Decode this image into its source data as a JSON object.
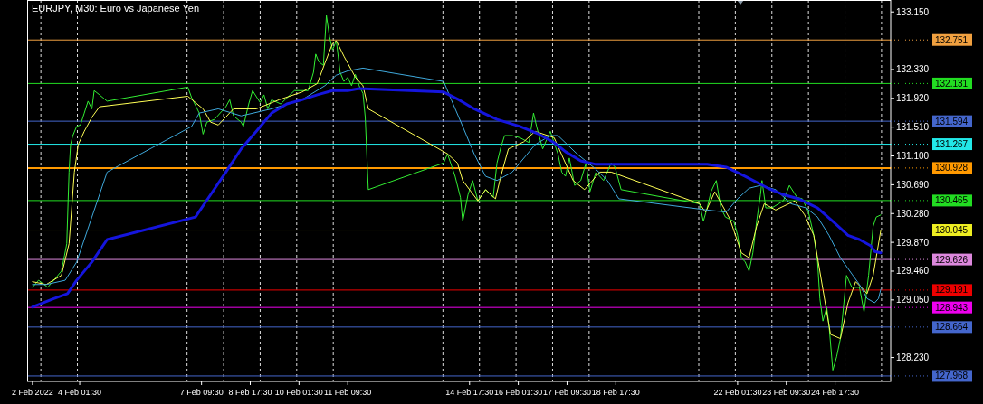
{
  "chart_data": {
    "type": "line",
    "title": "EURJPY, M30:  Euro vs Japanese Yen",
    "grid": "x",
    "line_style": "solid",
    "marker": "none",
    "xlim": [
      "2022-02-02T15:00",
      "2022-02-26T06:00"
    ],
    "ylim": [
      127.89,
      133.32
    ],
    "xticks": [
      {
        "value": "2022-02-02T18:30",
        "label": "2 Feb 2022"
      },
      {
        "value": "2022-02-04T01:30",
        "label": "4 Feb 01:30"
      },
      {
        "value": "2022-02-07T09:30",
        "label": "7 Feb 09:30"
      },
      {
        "value": "2022-02-08T17:30",
        "label": "8 Feb 17:30"
      },
      {
        "value": "2022-02-10T01:30",
        "label": "10 Feb 01:30"
      },
      {
        "value": "2022-02-11T09:30",
        "label": "11 Feb 09:30"
      },
      {
        "value": "2022-02-14T17:30",
        "label": "14 Feb 17:30"
      },
      {
        "value": "2022-02-16T01:30",
        "label": "16 Feb 01:30"
      },
      {
        "value": "2022-02-17T09:30",
        "label": "17 Feb 09:30"
      },
      {
        "value": "2022-02-18T17:30",
        "label": "18 Feb 17:30"
      },
      {
        "value": "2022-02-22T01:30",
        "label": "22 Feb 01:30"
      },
      {
        "value": "2022-02-23T09:30",
        "label": "23 Feb 09:30"
      },
      {
        "value": "2022-02-24T17:30",
        "label": "24 Feb 17:30"
      },
      {
        "value": "2022-02-03",
        "label": null
      },
      {
        "value": "2022-02-04",
        "label": null
      },
      {
        "value": "2022-02-07",
        "label": null
      },
      {
        "value": "2022-02-08",
        "label": null
      },
      {
        "value": "2022-02-09",
        "label": null
      },
      {
        "value": "2022-02-10",
        "label": null
      },
      {
        "value": "2022-02-11",
        "label": null
      },
      {
        "value": "2022-02-14",
        "label": null
      },
      {
        "value": "2022-02-15",
        "label": null
      },
      {
        "value": "2022-02-16",
        "label": null
      },
      {
        "value": "2022-02-17",
        "label": null
      },
      {
        "value": "2022-02-18",
        "label": null
      },
      {
        "value": "2022-02-21",
        "label": null
      },
      {
        "value": "2022-02-22",
        "label": null
      },
      {
        "value": "2022-02-23",
        "label": null
      },
      {
        "value": "2022-02-24",
        "label": null
      },
      {
        "value": "2022-02-25",
        "label": null
      },
      {
        "value": "2022-02-26",
        "label": null
      }
    ],
    "yticks": [
      {
        "value": 133.15,
        "label": "133.150"
      },
      {
        "value": 132.33,
        "label": "132.330"
      },
      {
        "value": 131.92,
        "label": "131.920"
      },
      {
        "value": 131.51,
        "label": "131.510"
      },
      {
        "value": 131.1,
        "label": "131.100"
      },
      {
        "value": 130.69,
        "label": "130.690"
      },
      {
        "value": 130.28,
        "label": "130.280"
      },
      {
        "value": 129.87,
        "label": "129.870"
      },
      {
        "value": 129.46,
        "label": "129.460"
      },
      {
        "value": 129.05,
        "label": "129.050"
      },
      {
        "value": 128.23,
        "label": "128.230"
      }
    ],
    "ref_lines": [
      {
        "axis": "y",
        "value": 132.751,
        "label": "132.751",
        "color": "#f0a040"
      },
      {
        "axis": "y",
        "value": 132.131,
        "label": "132.131",
        "color": "#22dd22"
      },
      {
        "axis": "y",
        "value": 131.594,
        "label": "131.594",
        "color": "#4466cc"
      },
      {
        "axis": "y",
        "value": 131.267,
        "label": "131.267",
        "color": "#22e8e8"
      },
      {
        "axis": "y",
        "value": 130.928,
        "label": "130.928",
        "color": "#ff9900"
      },
      {
        "axis": "y",
        "value": 130.465,
        "label": "130.465",
        "color": "#22dd22"
      },
      {
        "axis": "y",
        "value": 130.045,
        "label": "130.045",
        "color": "#eeee22"
      },
      {
        "axis": "y",
        "value": 129.626,
        "label": "129.626",
        "color": "#dd88dd"
      },
      {
        "axis": "y",
        "value": 129.191,
        "label": "129.191",
        "color": "#ee0000"
      },
      {
        "axis": "y",
        "value": 128.943,
        "label": "128.943",
        "color": "#ee00ee"
      },
      {
        "axis": "y",
        "value": 128.664,
        "label": "128.664",
        "color": "#4466cc"
      },
      {
        "axis": "y",
        "value": 127.968,
        "label": "127.968",
        "color": "#4466cc"
      }
    ],
    "series": [
      {
        "type": "line",
        "color": "#33ee33",
        "x": [
          "2022-02-02T18:30",
          "2022-02-02T22:30",
          "2022-02-03T01:00",
          "2022-02-03T04:30",
          "2022-02-03T08:30",
          "2022-02-03T13:30",
          "2022-02-03T15:30",
          "2022-02-03T17:00",
          "2022-02-03T18:30",
          "2022-02-03T19:30",
          "2022-02-03T21:00",
          "2022-02-03T23:30",
          "2022-02-04T02:00",
          "2022-02-04T04:30",
          "2022-02-04T07:00",
          "2022-02-04T09:30",
          "2022-02-04T11:00",
          "2022-02-04T14:30",
          "2022-02-04T19:30",
          "2022-02-07T00:30",
          "2022-02-07T03:00",
          "2022-02-07T08:00",
          "2022-02-07T10:30",
          "2022-02-07T13:00",
          "2022-02-07T18:00",
          "2022-02-08T01:30",
          "2022-02-08T04:00",
          "2022-02-08T06:30",
          "2022-02-08T11:30",
          "2022-02-08T13:00",
          "2022-02-08T16:30",
          "2022-02-08T19:00",
          "2022-02-09T00:00",
          "2022-02-09T02:30",
          "2022-02-09T05:00",
          "2022-02-09T07:30",
          "2022-02-09T13:30",
          "2022-02-09T22:30",
          "2022-02-10T04:30",
          "2022-02-10T07:30",
          "2022-02-10T11:00",
          "2022-02-10T12:30",
          "2022-02-10T14:30",
          "2022-02-10T17:30",
          "2022-02-10T19:30",
          "2022-02-10T21:30",
          "2022-02-10T23:30",
          "2022-02-11T02:00",
          "2022-02-11T04:30",
          "2022-02-11T07:00",
          "2022-02-11T09:30",
          "2022-02-11T12:00",
          "2022-02-11T14:30",
          "2022-02-11T17:00",
          "2022-02-11T19:30",
          "2022-02-11T21:00",
          "2022-02-11T23:00",
          "2022-02-14T00:30",
          "2022-02-14T03:00",
          "2022-02-14T08:00",
          "2022-02-14T11:30",
          "2022-02-14T13:00",
          "2022-02-14T16:30",
          "2022-02-14T19:30",
          "2022-02-14T23:00",
          "2022-02-15T04:00",
          "2022-02-15T09:00",
          "2022-02-15T11:30",
          "2022-02-15T14:00",
          "2022-02-15T16:30",
          "2022-02-15T21:30",
          "2022-02-16T02:30",
          "2022-02-16T08:30",
          "2022-02-16T11:30",
          "2022-02-16T13:30",
          "2022-02-16T17:30",
          "2022-02-16T22:30",
          "2022-02-17T03:30",
          "2022-02-17T06:00",
          "2022-02-17T08:30",
          "2022-02-17T11:00",
          "2022-02-17T14:30",
          "2022-02-17T18:30",
          "2022-02-17T22:00",
          "2022-02-18T00:30",
          "2022-02-18T04:30",
          "2022-02-18T09:30",
          "2022-02-18T14:30",
          "2022-02-18T17:00",
          "2022-02-18T21:00",
          "2022-02-21T00:30",
          "2022-02-21T03:00",
          "2022-02-21T05:30",
          "2022-02-21T08:00",
          "2022-02-21T11:30",
          "2022-02-21T14:30",
          "2022-02-21T17:30",
          "2022-02-21T23:00",
          "2022-02-22T01:30",
          "2022-02-22T04:00",
          "2022-02-22T06:30",
          "2022-02-22T09:00",
          "2022-02-22T11:30",
          "2022-02-22T14:00",
          "2022-02-22T16:30",
          "2022-02-22T17:30",
          "2022-02-22T20:00",
          "2022-02-23T00:00",
          "2022-02-23T07:30",
          "2022-02-23T11:30",
          "2022-02-23T16:30",
          "2022-02-23T20:00",
          "2022-02-24T00:00",
          "2022-02-24T03:30",
          "2022-02-24T06:00",
          "2022-02-24T07:30",
          "2022-02-24T09:30",
          "2022-02-24T12:00",
          "2022-02-24T13:30",
          "2022-02-24T16:00",
          "2022-02-24T18:30",
          "2022-02-24T21:00",
          "2022-02-25T01:00",
          "2022-02-25T04:30",
          "2022-02-25T09:30",
          "2022-02-25T12:30",
          "2022-02-25T15:30",
          "2022-02-25T18:30",
          "2022-02-25T20:30",
          "2022-02-25T23:30"
        ],
        "values": [
          129.23,
          129.33,
          129.29,
          129.23,
          129.33,
          129.46,
          129.68,
          129.85,
          130.87,
          131.26,
          131.39,
          131.52,
          131.54,
          131.71,
          131.88,
          131.77,
          132.03,
          131.97,
          131.88,
          132.08,
          131.93,
          131.71,
          131.41,
          131.58,
          131.62,
          131.8,
          131.9,
          131.67,
          131.58,
          131.52,
          131.84,
          132.03,
          131.86,
          131.97,
          131.77,
          131.9,
          131.84,
          132.03,
          132.03,
          132.03,
          132.29,
          132.55,
          132.44,
          132.39,
          133.1,
          132.8,
          132.61,
          132.74,
          132.29,
          132.16,
          132.22,
          132.1,
          132.26,
          132.1,
          131.99,
          131.65,
          130.62,
          131.0,
          131.13,
          130.81,
          130.51,
          130.17,
          130.55,
          130.75,
          130.46,
          130.62,
          130.51,
          131.0,
          131.22,
          131.39,
          131.39,
          131.36,
          131.29,
          131.71,
          131.52,
          131.2,
          131.45,
          131.13,
          130.87,
          130.81,
          131.07,
          130.68,
          130.75,
          131.0,
          130.59,
          130.87,
          130.75,
          131.0,
          130.94,
          130.62,
          130.42,
          130.17,
          130.36,
          130.59,
          130.75,
          130.36,
          130.23,
          130.17,
          129.97,
          129.65,
          129.59,
          129.46,
          129.72,
          130.17,
          130.55,
          130.75,
          130.36,
          130.36,
          130.46,
          130.68,
          130.51,
          130.49,
          130.3,
          129.97,
          129.59,
          129.07,
          128.75,
          128.95,
          128.69,
          128.05,
          128.24,
          128.5,
          129.4,
          129.23,
          129.23,
          128.88,
          129.4,
          130.1,
          130.23,
          130.26
        ]
      },
      {
        "type": "line",
        "color": "#ffff55",
        "x": [
          "2022-02-02T18:30",
          "2022-02-03T03:30",
          "2022-02-03T13:30",
          "2022-02-03T18:30",
          "2022-02-03T22:00",
          "2022-02-04T00:30",
          "2022-02-04T04:30",
          "2022-02-04T09:30",
          "2022-02-04T14:30",
          "2022-02-07T00:30",
          "2022-02-07T10:30",
          "2022-02-07T15:30",
          "2022-02-07T20:30",
          "2022-02-08T06:30",
          "2022-02-08T21:30",
          "2022-02-09T12:30",
          "2022-02-10T03:30",
          "2022-02-10T13:30",
          "2022-02-10T18:30",
          "2022-02-10T23:30",
          "2022-02-11T02:00",
          "2022-02-11T07:00",
          "2022-02-11T14:30",
          "2022-02-11T19:30",
          "2022-02-11T23:00",
          "2022-02-14T03:00",
          "2022-02-14T09:30",
          "2022-02-14T13:00",
          "2022-02-14T23:00",
          "2022-02-15T04:00",
          "2022-02-15T10:30",
          "2022-02-15T14:00",
          "2022-02-15T19:00",
          "2022-02-16T05:00",
          "2022-02-16T12:30",
          "2022-02-17T01:00",
          "2022-02-17T13:30",
          "2022-02-17T21:00",
          "2022-02-18T07:00",
          "2022-02-18T14:30",
          "2022-02-21T00:30",
          "2022-02-21T04:30",
          "2022-02-21T10:30",
          "2022-02-21T20:30",
          "2022-02-22T04:00",
          "2022-02-22T09:00",
          "2022-02-22T14:00",
          "2022-02-22T19:00",
          "2022-02-23T02:30",
          "2022-02-23T15:00",
          "2022-02-23T21:30",
          "2022-02-24T03:30",
          "2022-02-24T09:30",
          "2022-02-24T14:30",
          "2022-02-24T21:00",
          "2022-02-25T02:00",
          "2022-02-25T07:00",
          "2022-02-25T12:00",
          "2022-02-25T14:30",
          "2022-02-25T18:30",
          "2022-02-25T21:00",
          "2022-02-25T23:30"
        ],
        "values": [
          129.31,
          129.27,
          129.4,
          129.85,
          130.87,
          131.26,
          131.45,
          131.65,
          131.8,
          131.95,
          131.77,
          131.58,
          131.54,
          131.77,
          131.77,
          131.9,
          132.01,
          132.13,
          132.42,
          132.7,
          132.74,
          132.52,
          132.22,
          132.1,
          131.77,
          131.13,
          131.0,
          130.75,
          130.46,
          130.62,
          130.49,
          130.81,
          131.2,
          131.3,
          131.45,
          131.36,
          130.75,
          130.62,
          130.87,
          130.87,
          130.42,
          130.3,
          130.59,
          130.2,
          129.72,
          129.65,
          130.1,
          130.42,
          130.33,
          130.46,
          130.26,
          129.97,
          129.2,
          128.56,
          128.5,
          129.01,
          129.31,
          129.2,
          129.14,
          129.4,
          129.72,
          130.04
        ]
      },
      {
        "type": "line",
        "color": "#3fa9dc",
        "x": [
          "2022-02-02T18:30",
          "2022-02-03T03:30",
          "2022-02-03T16:00",
          "2022-02-03T23:30",
          "2022-02-04T09:30",
          "2022-02-04T19:30",
          "2022-02-07T03:00",
          "2022-02-07T08:00",
          "2022-02-07T20:30",
          "2022-02-08T11:30",
          "2022-02-09T07:30",
          "2022-02-10T03:30",
          "2022-02-10T18:30",
          "2022-02-11T02:00",
          "2022-02-11T09:30",
          "2022-02-11T19:30",
          "2022-02-14T00:30",
          "2022-02-14T05:30",
          "2022-02-14T13:00",
          "2022-02-14T20:30",
          "2022-02-15T04:00",
          "2022-02-15T11:30",
          "2022-02-15T21:30",
          "2022-02-16T12:30",
          "2022-02-16T22:30",
          "2022-02-17T03:30",
          "2022-02-17T16:00",
          "2022-02-18T04:30",
          "2022-02-18T12:00",
          "2022-02-18T19:30",
          "2022-02-21T05:30",
          "2022-02-21T18:00",
          "2022-02-22T01:30",
          "2022-02-22T09:00",
          "2022-02-22T16:30",
          "2022-02-23T02:30",
          "2022-02-23T12:30",
          "2022-02-23T22:30",
          "2022-02-24T06:00",
          "2022-02-24T13:30",
          "2022-02-24T21:00",
          "2022-02-25T04:30",
          "2022-02-25T09:30",
          "2022-02-25T14:30",
          "2022-02-25T19:30",
          "2022-02-25T22:00",
          "2022-02-25T23:30"
        ],
        "values": [
          129.27,
          129.27,
          129.33,
          129.59,
          130.23,
          130.87,
          131.52,
          131.71,
          131.77,
          131.67,
          131.77,
          131.9,
          132.1,
          132.25,
          132.31,
          132.35,
          132.16,
          131.9,
          131.52,
          131.13,
          130.81,
          130.75,
          130.87,
          131.26,
          131.39,
          131.39,
          131.13,
          130.91,
          130.75,
          130.49,
          130.33,
          130.3,
          130.49,
          130.64,
          130.68,
          130.62,
          130.42,
          130.36,
          130.23,
          129.97,
          129.65,
          129.42,
          129.27,
          129.07,
          129.01,
          129.07,
          129.2
        ]
      },
      {
        "type": "line",
        "color": "#1515dd",
        "x": [
          "2022-02-02T18:30",
          "2022-02-03T08:30",
          "2022-02-03T17:30",
          "2022-02-03T23:30",
          "2022-02-04T09:30",
          "2022-02-04T19:30",
          "2022-02-07T05:30",
          "2022-02-07T15:30",
          "2022-02-08T01:30",
          "2022-02-08T11:30",
          "2022-02-08T21:30",
          "2022-02-09T07:30",
          "2022-02-09T17:30",
          "2022-02-10T03:30",
          "2022-02-10T13:30",
          "2022-02-10T23:30",
          "2022-02-11T09:30",
          "2022-02-11T17:00",
          "2022-02-14T00:30",
          "2022-02-14T10:30",
          "2022-02-14T20:30",
          "2022-02-15T11:30",
          "2022-02-16T02:30",
          "2022-02-16T15:00",
          "2022-02-17T01:00",
          "2022-02-17T08:30",
          "2022-02-17T18:30",
          "2022-02-18T04:30",
          "2022-02-21T05:30",
          "2022-02-21T18:00",
          "2022-02-22T06:30",
          "2022-02-22T21:30",
          "2022-02-23T07:30",
          "2022-02-23T17:30",
          "2022-02-24T06:00",
          "2022-02-24T16:00",
          "2022-02-25T02:00",
          "2022-02-25T09:30",
          "2022-02-25T17:00",
          "2022-02-25T19:30",
          "2022-02-25T23:30"
        ],
        "values": [
          128.95,
          129.07,
          129.14,
          129.33,
          129.59,
          129.91,
          130.23,
          130.55,
          130.87,
          131.2,
          131.45,
          131.71,
          131.84,
          131.9,
          131.97,
          132.03,
          132.03,
          132.06,
          132.01,
          131.9,
          131.77,
          131.62,
          131.52,
          131.41,
          131.29,
          131.16,
          131.03,
          130.98,
          130.98,
          130.94,
          130.81,
          130.64,
          130.55,
          130.49,
          130.36,
          130.17,
          129.97,
          129.91,
          129.82,
          129.74,
          129.72
        ]
      }
    ]
  }
}
